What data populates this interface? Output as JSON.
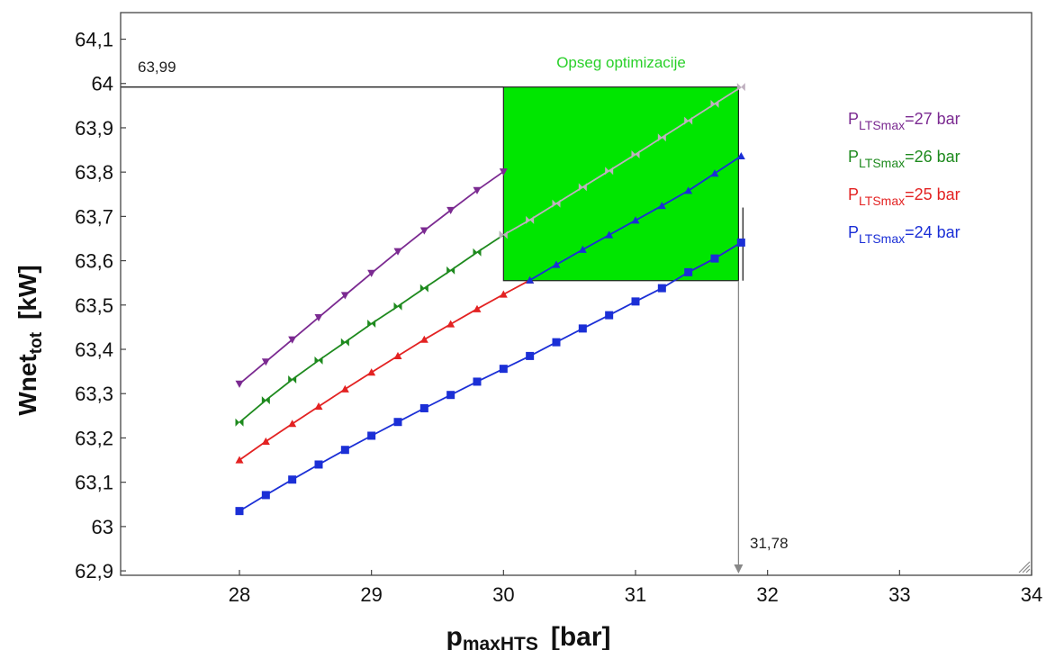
{
  "chart_data": {
    "type": "line",
    "xlabel": {
      "main": "p",
      "sub": "maxHTS",
      "unit": "[bar]"
    },
    "ylabel": {
      "main": "Wnet",
      "sub": "tot",
      "unit": "[kW]"
    },
    "xlim": [
      27.1,
      34.0
    ],
    "ylim": [
      62.89,
      64.16
    ],
    "x_ticks": [
      {
        "value": 28,
        "label": "28"
      },
      {
        "value": 29,
        "label": "29"
      },
      {
        "value": 30,
        "label": "30"
      },
      {
        "value": 31,
        "label": "31"
      },
      {
        "value": 32,
        "label": "32"
      },
      {
        "value": 33,
        "label": "33"
      },
      {
        "value": 34,
        "label": "34"
      }
    ],
    "y_ticks": [
      {
        "value": 62.9,
        "label": "62,9"
      },
      {
        "value": 63.0,
        "label": "63"
      },
      {
        "value": 63.1,
        "label": "63,1"
      },
      {
        "value": 63.2,
        "label": "63,2"
      },
      {
        "value": 63.3,
        "label": "63,3"
      },
      {
        "value": 63.4,
        "label": "63,4"
      },
      {
        "value": 63.5,
        "label": "63,5"
      },
      {
        "value": 63.6,
        "label": "63,6"
      },
      {
        "value": 63.7,
        "label": "63,7"
      },
      {
        "value": 63.8,
        "label": "63,8"
      },
      {
        "value": 63.9,
        "label": "63,9"
      },
      {
        "value": 64.0,
        "label": "64"
      },
      {
        "value": 64.1,
        "label": "64,1"
      }
    ],
    "grid": false,
    "legend_position": "right",
    "series": [
      {
        "name_main": "P",
        "name_sub": "LTSmax",
        "name_suffix": "=27 bar",
        "color": "#7b2a91",
        "marker": "triangle-down",
        "x": [
          28.0,
          28.2,
          28.4,
          28.6,
          28.8,
          29.0,
          29.2,
          29.4,
          29.6,
          29.8,
          30.0
        ],
        "y": [
          63.322,
          63.372,
          63.422,
          63.472,
          63.522,
          63.572,
          63.621,
          63.668,
          63.714,
          63.759,
          63.801
        ]
      },
      {
        "name_main": "P",
        "name_sub": "LTSmax",
        "name_suffix": "=26 bar",
        "color": "#1e8a1e",
        "marker": "bowtie",
        "x": [
          28.0,
          28.2,
          28.4,
          28.6,
          28.8,
          29.0,
          29.2,
          29.4,
          29.6,
          29.8,
          30.0
        ],
        "y": [
          63.235,
          63.285,
          63.332,
          63.375,
          63.416,
          63.458,
          63.497,
          63.538,
          63.578,
          63.619,
          63.658
        ]
      },
      {
        "name_main": "P",
        "name_sub": "LTSmax",
        "name_suffix": "=25 bar",
        "color": "#e32222",
        "marker": "triangle-up",
        "x": [
          28.0,
          28.2,
          28.4,
          28.6,
          28.8,
          29.0,
          29.2,
          29.4,
          29.6,
          29.8,
          30.0,
          30.2,
          31.4,
          31.6,
          31.8
        ],
        "y": [
          63.15,
          63.192,
          63.232,
          63.271,
          63.31,
          63.348,
          63.385,
          63.422,
          63.457,
          63.491,
          63.524,
          63.556,
          63.574,
          63.605,
          63.641
        ]
      },
      {
        "name_main": "P",
        "name_sub": "LTSmax",
        "name_suffix": "=24 bar",
        "color": "#1b2fd6",
        "marker": "square",
        "x": [
          28.0,
          28.2,
          28.4,
          28.6,
          28.8,
          29.0,
          29.2,
          29.4,
          29.6,
          29.8,
          30.0,
          30.2,
          30.4,
          30.6,
          30.8,
          31.0,
          31.2,
          31.4,
          31.6,
          31.8
        ],
        "y": [
          63.035,
          63.071,
          63.106,
          63.14,
          63.173,
          63.205,
          63.236,
          63.267,
          63.297,
          63.327,
          63.356,
          63.385,
          63.416,
          63.447,
          63.477,
          63.508,
          63.538,
          63.574,
          63.605,
          63.641
        ]
      },
      {
        "name": "",
        "color": "#1b2fd6",
        "marker": "triangle-up",
        "x": [
          30.2,
          30.4,
          30.6,
          30.8,
          31.0,
          31.2,
          31.4,
          31.6,
          31.8
        ],
        "y": [
          63.556,
          63.591,
          63.625,
          63.658,
          63.691,
          63.724,
          63.758,
          63.797,
          63.836
        ]
      },
      {
        "name": "",
        "color": "#bfb0bf",
        "marker": "bowtie",
        "x": [
          30.0,
          30.2,
          30.4,
          30.6,
          30.8,
          31.0,
          31.2,
          31.4,
          31.6,
          31.8
        ],
        "y": [
          63.658,
          63.692,
          63.729,
          63.766,
          63.803,
          63.84,
          63.878,
          63.916,
          63.954,
          63.992
        ]
      }
    ],
    "annotations": {
      "optimization_region": {
        "label": "Opseg optimizacije",
        "x": [
          30.0,
          31.78
        ],
        "y": [
          63.555,
          63.992
        ],
        "color": "#00e600"
      },
      "max_y": {
        "label": "63,99",
        "value": 63.992
      },
      "max_x": {
        "label": "31,78",
        "value": 31.78
      }
    }
  }
}
